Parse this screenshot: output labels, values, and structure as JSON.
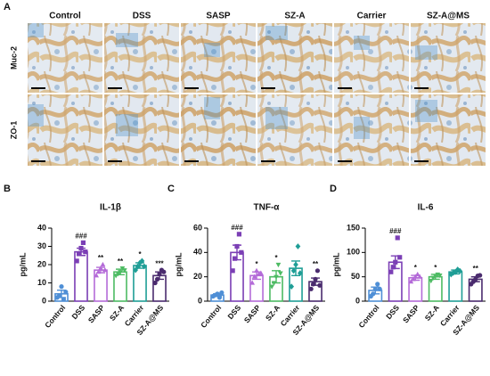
{
  "panel_a": {
    "label": "A",
    "columns": [
      "Control",
      "DSS",
      "SASP",
      "SZ-A",
      "Carrier",
      "SZ-A@MS"
    ],
    "rows": [
      "Muc-2",
      "ZO-1"
    ]
  },
  "chart_data": [
    {
      "type": "bar",
      "panel": "B",
      "title": "IL-1β",
      "ylabel": "pg/mL",
      "categories": [
        "Control",
        "DSS",
        "SASP",
        "SZ-A",
        "Carrier",
        "SZ-A@MS"
      ],
      "values": [
        4,
        27,
        17,
        16,
        19.5,
        14
      ],
      "errors": [
        2,
        2,
        1.5,
        1.5,
        1.5,
        2
      ],
      "points": [
        [
          2,
          3,
          8,
          1,
          5
        ],
        [
          22,
          26,
          29,
          32,
          27
        ],
        [
          14,
          16,
          18,
          20,
          17
        ],
        [
          14,
          15,
          16,
          18,
          17
        ],
        [
          17,
          19,
          21,
          22,
          19
        ],
        [
          10,
          12,
          15,
          17,
          16
        ]
      ],
      "annotations": [
        null,
        "###",
        "**",
        "**",
        "*",
        "***"
      ],
      "colors": [
        "#4f8fd6",
        "#7b3fb5",
        "#b46bd8",
        "#4dbb63",
        "#1f9e96",
        "#4a2b6e"
      ],
      "markers": [
        "circle",
        "square",
        "triangle",
        "triangle-down",
        "diamond",
        "circle"
      ],
      "ylim": [
        0,
        40
      ],
      "yticks": [
        0,
        10,
        20,
        30,
        40
      ]
    },
    {
      "type": "bar",
      "panel": "C",
      "title": "TNF-α",
      "ylabel": "pg/mL",
      "categories": [
        "Control",
        "DSS",
        "SASP",
        "SZ-A",
        "Carrier",
        "SZ-A@MS"
      ],
      "values": [
        5,
        40,
        21,
        20,
        27,
        16
      ],
      "errors": [
        1,
        6,
        3,
        5,
        6,
        3
      ],
      "points": [
        [
          4,
          5,
          6,
          3,
          7
        ],
        [
          25,
          35,
          45,
          55,
          40
        ],
        [
          15,
          20,
          25,
          22,
          23
        ],
        [
          12,
          15,
          20,
          30,
          23
        ],
        [
          12,
          25,
          30,
          45,
          23
        ],
        [
          10,
          14,
          18,
          25,
          13
        ]
      ],
      "annotations": [
        null,
        "###",
        "*",
        "*",
        null,
        "**"
      ],
      "colors": [
        "#4f8fd6",
        "#7b3fb5",
        "#b46bd8",
        "#4dbb63",
        "#1f9e96",
        "#4a2b6e"
      ],
      "markers": [
        "circle",
        "square",
        "triangle",
        "triangle-down",
        "diamond",
        "circle"
      ],
      "ylim": [
        0,
        60
      ],
      "yticks": [
        0,
        20,
        40,
        60
      ]
    },
    {
      "type": "bar",
      "panel": "D",
      "title": "IL-6",
      "ylabel": "pg/mL",
      "categories": [
        "Control",
        "DSS",
        "SASP",
        "SZ-A",
        "Carrier",
        "SZ-A@MS"
      ],
      "values": [
        22,
        80,
        48,
        50,
        60,
        45
      ],
      "errors": [
        7,
        13,
        5,
        5,
        4,
        5
      ],
      "points": [
        [
          10,
          15,
          25,
          35,
          25
        ],
        [
          60,
          70,
          80,
          130,
          90
        ],
        [
          40,
          45,
          50,
          55,
          50
        ],
        [
          42,
          48,
          52,
          55,
          53
        ],
        [
          55,
          58,
          60,
          65,
          62
        ],
        [
          35,
          40,
          45,
          52,
          53
        ]
      ],
      "annotations": [
        null,
        "###",
        "*",
        "*",
        null,
        "**"
      ],
      "colors": [
        "#4f8fd6",
        "#7b3fb5",
        "#b46bd8",
        "#4dbb63",
        "#1f9e96",
        "#4a2b6e"
      ],
      "markers": [
        "circle",
        "square",
        "triangle",
        "triangle-down",
        "diamond",
        "circle"
      ],
      "ylim": [
        0,
        150
      ],
      "yticks": [
        0,
        50,
        100,
        150
      ]
    }
  ]
}
